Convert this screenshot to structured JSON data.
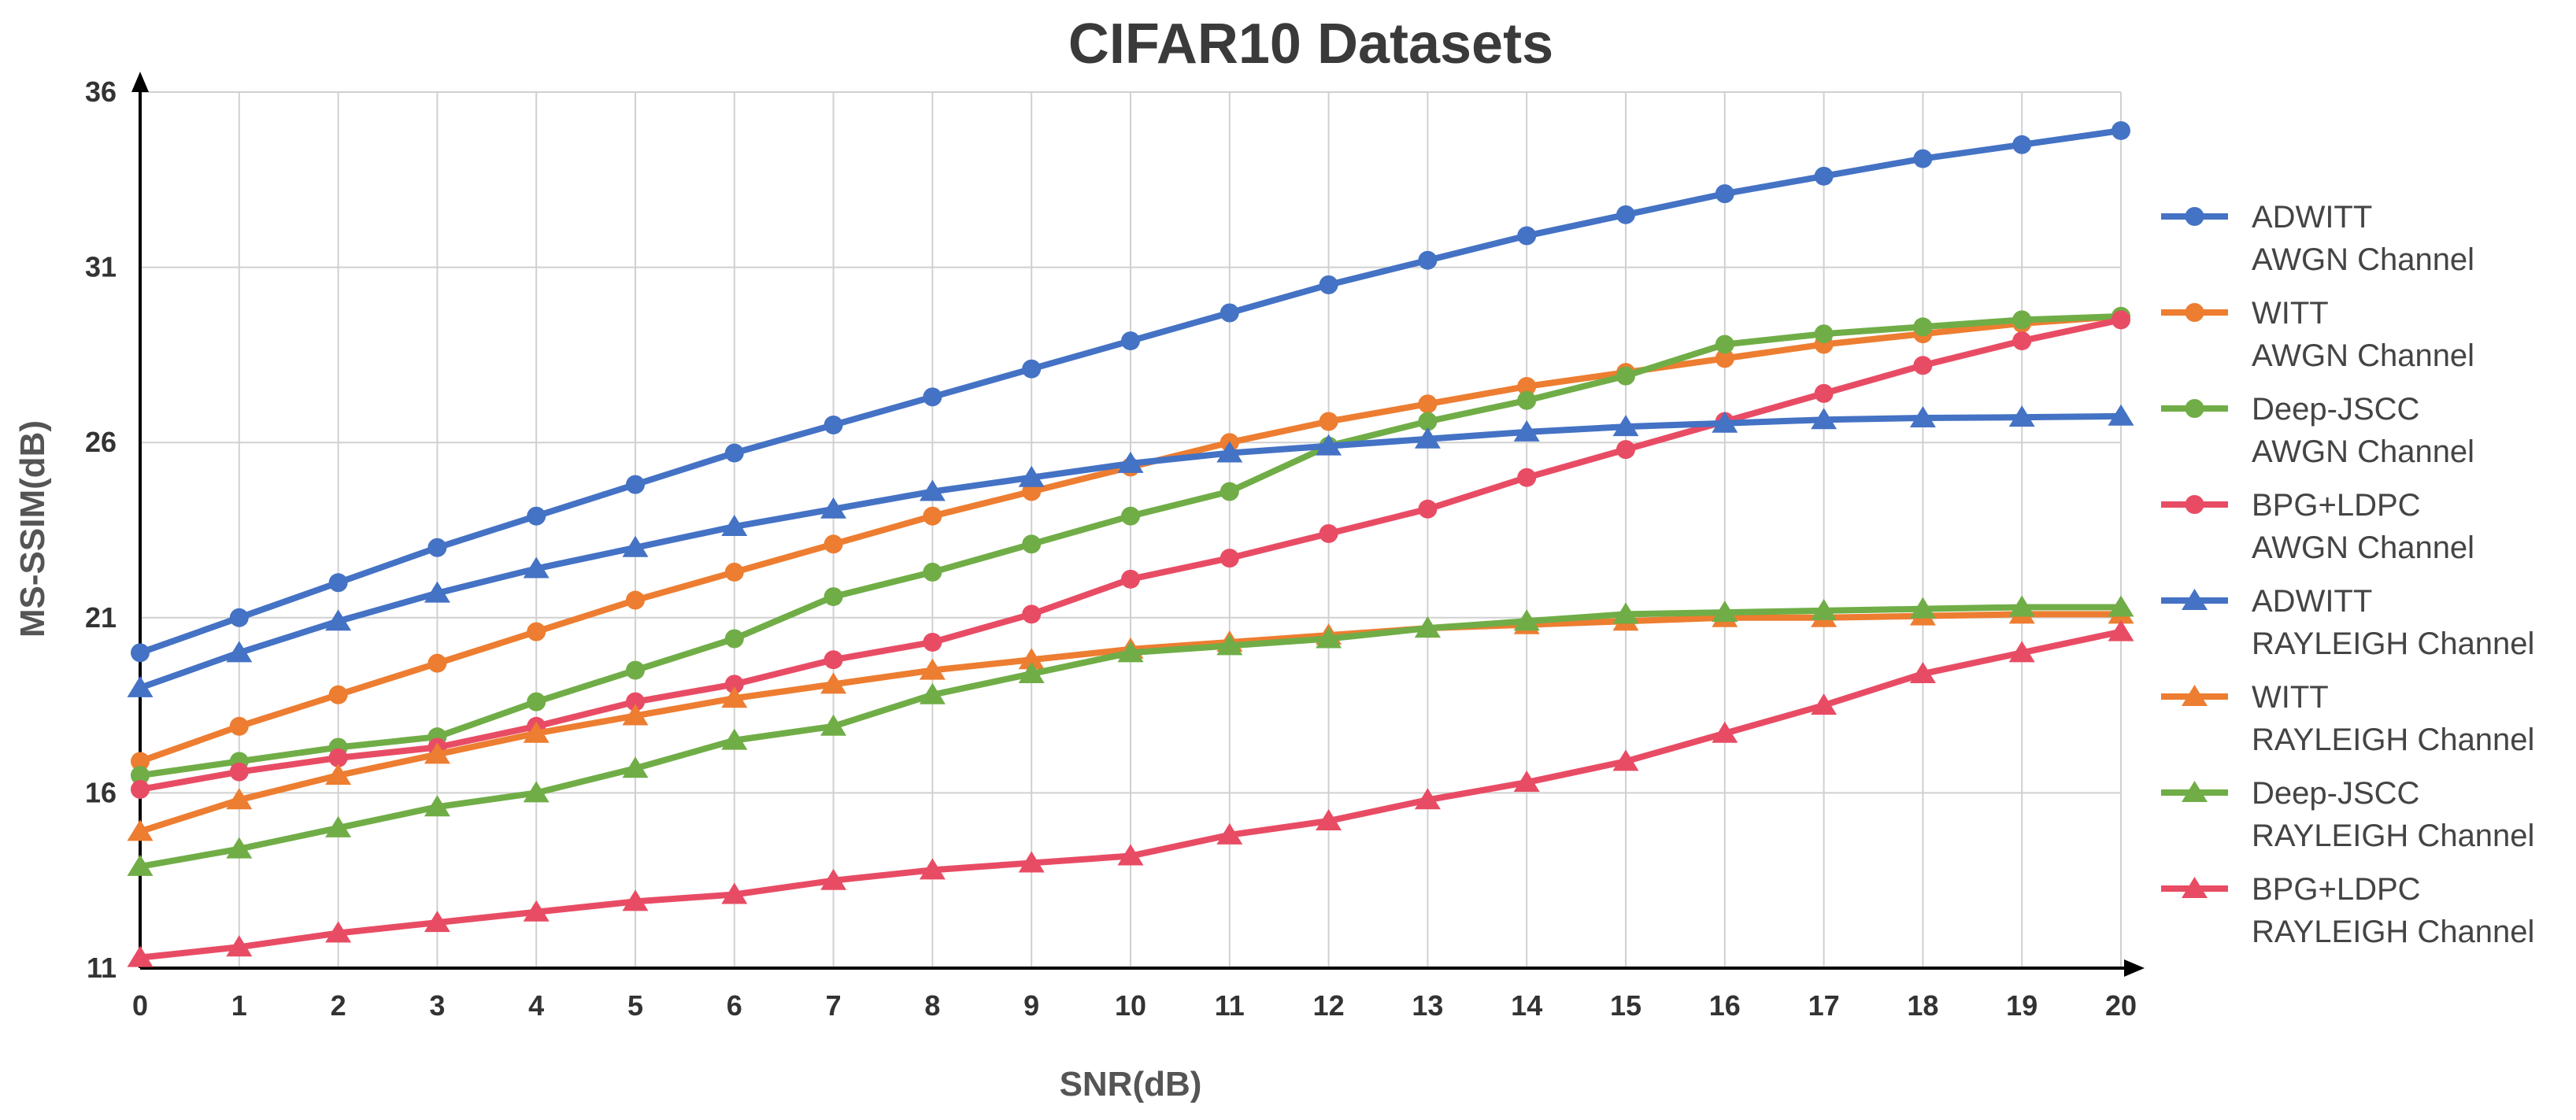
{
  "chart_data": {
    "type": "line",
    "title": "CIFAR10 Datasets",
    "xlabel": "SNR(dB)",
    "ylabel": "MS-SSIM(dB)",
    "xlim": [
      0,
      20
    ],
    "ylim": [
      11,
      36
    ],
    "x": [
      0,
      1,
      2,
      3,
      4,
      5,
      6,
      7,
      8,
      9,
      10,
      11,
      12,
      13,
      14,
      15,
      16,
      17,
      18,
      19,
      20
    ],
    "yticks": [
      11,
      16,
      21,
      26,
      31,
      36
    ],
    "grid": true,
    "legend_position": "right",
    "series": [
      {
        "name_line1": "ADWITT",
        "name_line2": "AWGN Channel",
        "color": "#4472C4",
        "marker": "circle",
        "values": [
          20.0,
          21.0,
          22.0,
          23.0,
          23.9,
          24.8,
          25.7,
          26.5,
          27.3,
          28.1,
          28.9,
          29.7,
          30.5,
          31.2,
          31.9,
          32.5,
          33.1,
          33.6,
          34.1,
          34.5,
          34.9
        ]
      },
      {
        "name_line1": "WITT",
        "name_line2": "AWGN Channel",
        "color": "#ED7D31",
        "marker": "circle",
        "values": [
          16.9,
          17.9,
          18.8,
          19.7,
          20.6,
          21.5,
          22.3,
          23.1,
          23.9,
          24.6,
          25.3,
          26.0,
          26.6,
          27.1,
          27.6,
          28.0,
          28.4,
          28.8,
          29.1,
          29.4,
          29.6
        ]
      },
      {
        "name_line1": "Deep-JSCC",
        "name_line2": "AWGN Channel",
        "color": "#70AD47",
        "marker": "circle",
        "values": [
          16.5,
          16.9,
          17.3,
          17.6,
          18.6,
          19.5,
          20.4,
          21.6,
          22.3,
          23.1,
          23.9,
          24.6,
          25.9,
          26.6,
          27.2,
          27.9,
          28.8,
          29.1,
          29.3,
          29.5,
          29.6
        ]
      },
      {
        "name_line1": "BPG+LDPC",
        "name_line2": "AWGN Channel",
        "color": "#E84C64",
        "marker": "circle",
        "values": [
          16.1,
          16.6,
          17.0,
          17.3,
          17.9,
          18.6,
          19.1,
          19.8,
          20.3,
          21.1,
          22.1,
          22.7,
          23.4,
          24.1,
          25.0,
          25.8,
          26.6,
          27.4,
          28.2,
          28.9,
          29.5
        ]
      },
      {
        "name_line1": "ADWITT",
        "name_line2": "RAYLEIGH Channel",
        "color": "#4472C4",
        "marker": "triangle",
        "values": [
          19.0,
          20.0,
          20.9,
          21.7,
          22.4,
          23.0,
          23.6,
          24.1,
          24.6,
          25.0,
          25.4,
          25.7,
          25.9,
          26.1,
          26.3,
          26.45,
          26.55,
          26.65,
          26.7,
          26.72,
          26.75
        ]
      },
      {
        "name_line1": "WITT",
        "name_line2": "RAYLEIGH Channel",
        "color": "#ED7D31",
        "marker": "triangle",
        "values": [
          14.9,
          15.8,
          16.5,
          17.1,
          17.7,
          18.2,
          18.7,
          19.1,
          19.5,
          19.8,
          20.1,
          20.3,
          20.5,
          20.7,
          20.8,
          20.9,
          21.0,
          21.0,
          21.05,
          21.1,
          21.1
        ]
      },
      {
        "name_line1": "Deep-JSCC",
        "name_line2": "RAYLEIGH Channel",
        "color": "#70AD47",
        "marker": "triangle",
        "values": [
          13.9,
          14.4,
          15.0,
          15.6,
          16.0,
          16.7,
          17.5,
          17.9,
          18.8,
          19.4,
          20.0,
          20.2,
          20.4,
          20.7,
          20.9,
          21.1,
          21.15,
          21.2,
          21.25,
          21.3,
          21.3
        ]
      },
      {
        "name_line1": "BPG+LDPC",
        "name_line2": "RAYLEIGH Channel",
        "color": "#E84C64",
        "marker": "triangle",
        "values": [
          11.3,
          11.6,
          12.0,
          12.3,
          12.6,
          12.9,
          13.1,
          13.5,
          13.8,
          14.0,
          14.2,
          14.8,
          15.2,
          15.8,
          16.3,
          16.9,
          17.7,
          18.5,
          19.4,
          20.0,
          20.6
        ]
      }
    ]
  }
}
